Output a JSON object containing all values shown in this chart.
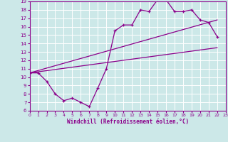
{
  "xlabel": "Windchill (Refroidissement éolien,°C)",
  "bg_color": "#cce8e8",
  "grid_color": "#ffffff",
  "line_color": "#8b008b",
  "xmin": 0,
  "xmax": 23,
  "ymin": 6,
  "ymax": 19,
  "line1_x": [
    0,
    1,
    2,
    3,
    4,
    5,
    6,
    7,
    8,
    9,
    10,
    11,
    12,
    13,
    14,
    15,
    16,
    17,
    18,
    19,
    20,
    21,
    22
  ],
  "line1_y": [
    10.5,
    10.5,
    9.5,
    8.0,
    7.2,
    7.5,
    7.0,
    6.5,
    8.7,
    11.0,
    15.5,
    16.2,
    16.2,
    18.0,
    17.8,
    19.2,
    19.2,
    17.8,
    17.8,
    18.0,
    16.8,
    16.5,
    14.8
  ],
  "line2_x": [
    0,
    22
  ],
  "line2_y": [
    10.5,
    16.8
  ],
  "line3_x": [
    0,
    22
  ],
  "line3_y": [
    10.5,
    13.5
  ],
  "yticks": [
    6,
    7,
    8,
    9,
    10,
    11,
    12,
    13,
    14,
    15,
    16,
    17,
    18,
    19
  ],
  "xticks": [
    0,
    1,
    2,
    3,
    4,
    5,
    6,
    7,
    8,
    9,
    10,
    11,
    12,
    13,
    14,
    15,
    16,
    17,
    18,
    19,
    20,
    21,
    22,
    23
  ]
}
